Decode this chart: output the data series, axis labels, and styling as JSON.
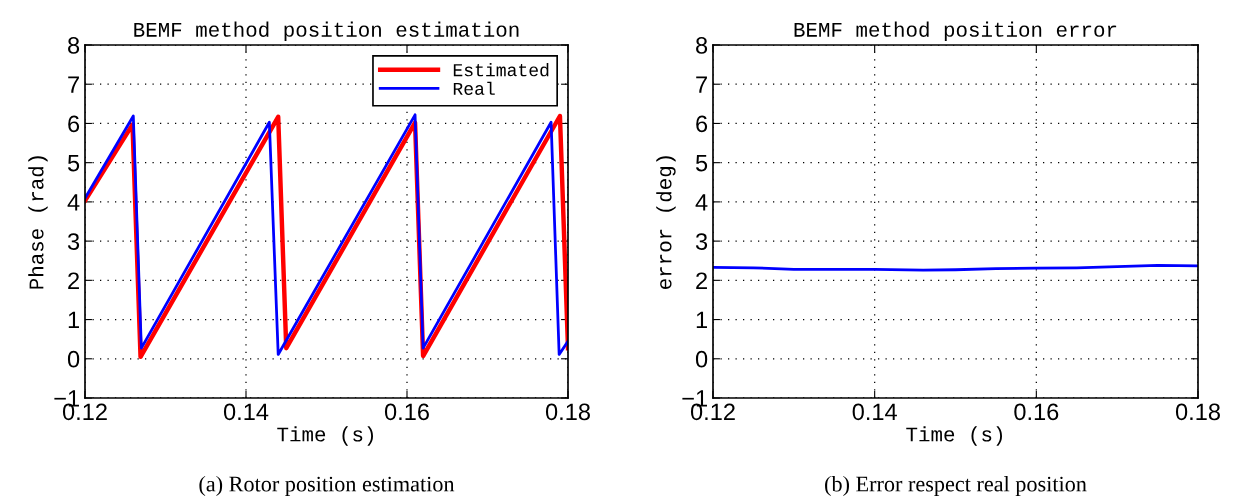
{
  "chart_data": [
    {
      "type": "line",
      "title": "BEMF method position estimation",
      "xlabel": "Time (s)",
      "ylabel": "Phase (rad)",
      "annotations": [
        "(a) Rotor position estimation"
      ],
      "xlim": [
        0.12,
        0.18
      ],
      "xticks": [
        0.12,
        0.14,
        0.16,
        0.18
      ],
      "ylim": [
        -1,
        8
      ],
      "yticks": [
        {
          "value": -1,
          "label": "−1"
        },
        0,
        1,
        2,
        3,
        4,
        5,
        6,
        7,
        8
      ],
      "grid": true,
      "legend": "top right",
      "line_style": "solid",
      "marker": "none",
      "series": [
        {
          "name": "Estimated",
          "color": "#ff0000",
          "x": [
            0.12,
            0.1259,
            0.1269,
            0.144,
            0.145,
            0.161,
            0.162,
            0.179,
            0.18
          ],
          "values": [
            4.03,
            5.97,
            0.05,
            6.17,
            0.27,
            6.02,
            0.07,
            6.19,
            0.27
          ]
        },
        {
          "name": "Real",
          "color": "#0000ff",
          "x": [
            0.12,
            0.126,
            0.127,
            0.1429,
            0.144,
            0.161,
            0.162,
            0.1779,
            0.1789,
            0.18
          ],
          "values": [
            4.09,
            6.19,
            0.27,
            6.03,
            0.11,
            6.22,
            0.27,
            6.03,
            0.11,
            0.45
          ]
        }
      ]
    },
    {
      "type": "line",
      "title": "BEMF method position error",
      "xlabel": "Time (s)",
      "ylabel": "error (deg)",
      "annotations": [
        "(b) Error respect real position"
      ],
      "xlim": [
        0.12,
        0.18
      ],
      "xticks": [
        0.12,
        0.14,
        0.16,
        0.18
      ],
      "ylim": [
        -1,
        8
      ],
      "yticks": [
        {
          "value": -1,
          "label": "−1"
        },
        0,
        1,
        2,
        3,
        4,
        5,
        6,
        7,
        8
      ],
      "grid": true,
      "legend": false,
      "line_style": "solid",
      "marker": "none",
      "series": [
        {
          "color": "#0000ff",
          "x": [
            0.12,
            0.125,
            0.13,
            0.135,
            0.14,
            0.146,
            0.15,
            0.155,
            0.16,
            0.165,
            0.17,
            0.175,
            0.18
          ],
          "values": [
            2.33,
            2.32,
            2.28,
            2.28,
            2.28,
            2.26,
            2.27,
            2.3,
            2.31,
            2.32,
            2.35,
            2.38,
            2.37
          ]
        }
      ]
    }
  ]
}
